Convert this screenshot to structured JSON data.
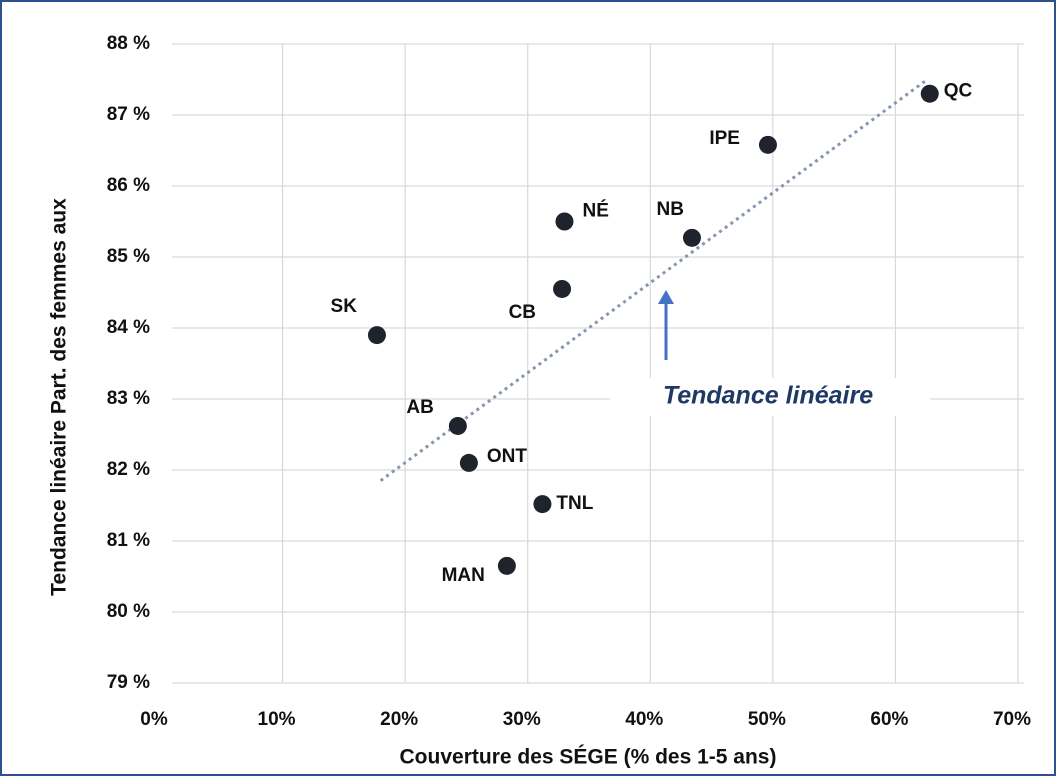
{
  "chart_data": {
    "type": "scatter",
    "x_label": "Couverture des SÉGE (% des 1-5 ans)",
    "y_label": "Tendance linéaire Part. des femmes aux",
    "annotation": "Tendance linéaire",
    "xlim": [
      0,
      70
    ],
    "ylim": [
      79,
      88
    ],
    "xticks": [
      {
        "value": 0,
        "label": "0%"
      },
      {
        "value": 10,
        "label": "10%"
      },
      {
        "value": 20,
        "label": "20%"
      },
      {
        "value": 30,
        "label": "30%"
      },
      {
        "value": 40,
        "label": "40%"
      },
      {
        "value": 50,
        "label": "50%"
      },
      {
        "value": 60,
        "label": "60%"
      },
      {
        "value": 70,
        "label": "70%"
      }
    ],
    "yticks": [
      {
        "value": 79,
        "label": "79 %"
      },
      {
        "value": 80,
        "label": "80 %"
      },
      {
        "value": 81,
        "label": "81 %"
      },
      {
        "value": 82,
        "label": "82 %"
      },
      {
        "value": 83,
        "label": "83 %"
      },
      {
        "value": 84,
        "label": "84 %"
      },
      {
        "value": 85,
        "label": "85 %"
      },
      {
        "value": 86,
        "label": "86 %"
      },
      {
        "value": 87,
        "label": "87 %"
      },
      {
        "value": 88,
        "label": "88 %"
      }
    ],
    "grid": true,
    "color": "#1f232b",
    "trend_color": "#8496b0",
    "labels": [
      "QC",
      "IPE",
      "NB",
      "NÉ",
      "CB",
      "SK",
      "AB",
      "ONT",
      "TNL",
      "MAN"
    ],
    "x": [
      62.8,
      49.6,
      43.4,
      33.0,
      32.8,
      17.7,
      24.3,
      25.2,
      31.2,
      28.3
    ],
    "y": [
      87.3,
      86.58,
      85.27,
      85.5,
      84.55,
      83.9,
      82.62,
      82.1,
      81.52,
      80.65
    ],
    "trendline": {
      "x": [
        18.0,
        62.6
      ],
      "y": [
        81.85,
        87.5
      ]
    }
  }
}
